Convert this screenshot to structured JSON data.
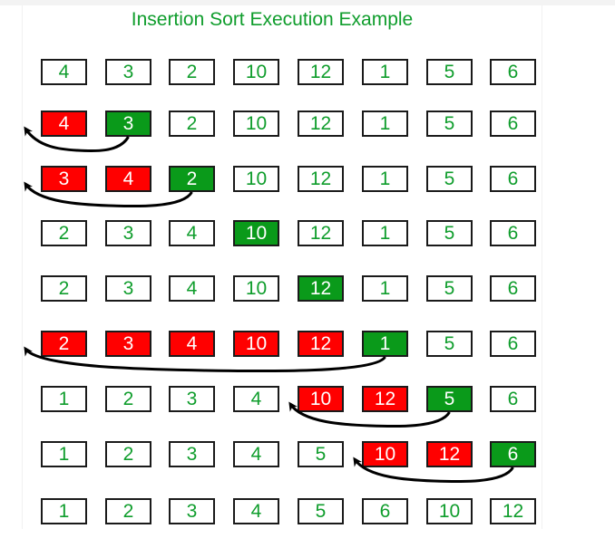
{
  "title": "Insertion Sort Execution Example",
  "colors": {
    "text_green": "#0f9d2c",
    "highlight_red": "#ff0000",
    "highlight_green": "#0a9a1a",
    "border": "#1a1a1a"
  },
  "rows": [
    [
      {
        "v": "4",
        "s": "plain"
      },
      {
        "v": "3",
        "s": "plain"
      },
      {
        "v": "2",
        "s": "plain"
      },
      {
        "v": "10",
        "s": "plain"
      },
      {
        "v": "12",
        "s": "plain"
      },
      {
        "v": "1",
        "s": "plain"
      },
      {
        "v": "5",
        "s": "plain"
      },
      {
        "v": "6",
        "s": "plain"
      }
    ],
    [
      {
        "v": "4",
        "s": "red"
      },
      {
        "v": "3",
        "s": "green"
      },
      {
        "v": "2",
        "s": "plain"
      },
      {
        "v": "10",
        "s": "plain"
      },
      {
        "v": "12",
        "s": "plain"
      },
      {
        "v": "1",
        "s": "plain"
      },
      {
        "v": "5",
        "s": "plain"
      },
      {
        "v": "6",
        "s": "plain"
      }
    ],
    [
      {
        "v": "3",
        "s": "red"
      },
      {
        "v": "4",
        "s": "red"
      },
      {
        "v": "2",
        "s": "green"
      },
      {
        "v": "10",
        "s": "plain"
      },
      {
        "v": "12",
        "s": "plain"
      },
      {
        "v": "1",
        "s": "plain"
      },
      {
        "v": "5",
        "s": "plain"
      },
      {
        "v": "6",
        "s": "plain"
      }
    ],
    [
      {
        "v": "2",
        "s": "plain"
      },
      {
        "v": "3",
        "s": "plain"
      },
      {
        "v": "4",
        "s": "plain"
      },
      {
        "v": "10",
        "s": "green"
      },
      {
        "v": "12",
        "s": "plain"
      },
      {
        "v": "1",
        "s": "plain"
      },
      {
        "v": "5",
        "s": "plain"
      },
      {
        "v": "6",
        "s": "plain"
      }
    ],
    [
      {
        "v": "2",
        "s": "plain"
      },
      {
        "v": "3",
        "s": "plain"
      },
      {
        "v": "4",
        "s": "plain"
      },
      {
        "v": "10",
        "s": "plain"
      },
      {
        "v": "12",
        "s": "green"
      },
      {
        "v": "1",
        "s": "plain"
      },
      {
        "v": "5",
        "s": "plain"
      },
      {
        "v": "6",
        "s": "plain"
      }
    ],
    [
      {
        "v": "2",
        "s": "red"
      },
      {
        "v": "3",
        "s": "red"
      },
      {
        "v": "4",
        "s": "red"
      },
      {
        "v": "10",
        "s": "red"
      },
      {
        "v": "12",
        "s": "red"
      },
      {
        "v": "1",
        "s": "green"
      },
      {
        "v": "5",
        "s": "plain"
      },
      {
        "v": "6",
        "s": "plain"
      }
    ],
    [
      {
        "v": "1",
        "s": "plain"
      },
      {
        "v": "2",
        "s": "plain"
      },
      {
        "v": "3",
        "s": "plain"
      },
      {
        "v": "4",
        "s": "plain"
      },
      {
        "v": "10",
        "s": "red"
      },
      {
        "v": "12",
        "s": "red"
      },
      {
        "v": "5",
        "s": "green"
      },
      {
        "v": "6",
        "s": "plain"
      }
    ],
    [
      {
        "v": "1",
        "s": "plain"
      },
      {
        "v": "2",
        "s": "plain"
      },
      {
        "v": "3",
        "s": "plain"
      },
      {
        "v": "4",
        "s": "plain"
      },
      {
        "v": "5",
        "s": "plain"
      },
      {
        "v": "10",
        "s": "red"
      },
      {
        "v": "12",
        "s": "red"
      },
      {
        "v": "6",
        "s": "green"
      }
    ],
    [
      {
        "v": "1",
        "s": "plain"
      },
      {
        "v": "2",
        "s": "plain"
      },
      {
        "v": "3",
        "s": "plain"
      },
      {
        "v": "4",
        "s": "plain"
      },
      {
        "v": "5",
        "s": "plain"
      },
      {
        "v": "6",
        "s": "plain"
      },
      {
        "v": "10",
        "s": "plain"
      },
      {
        "v": "12",
        "s": "plain"
      }
    ]
  ],
  "moves": [
    {
      "row": 1,
      "from": 1,
      "to": 0
    },
    {
      "row": 2,
      "from": 2,
      "to": 0
    },
    {
      "row": 5,
      "from": 5,
      "to": 0
    },
    {
      "row": 6,
      "from": 6,
      "to": 4
    },
    {
      "row": 7,
      "from": 7,
      "to": 5
    }
  ]
}
